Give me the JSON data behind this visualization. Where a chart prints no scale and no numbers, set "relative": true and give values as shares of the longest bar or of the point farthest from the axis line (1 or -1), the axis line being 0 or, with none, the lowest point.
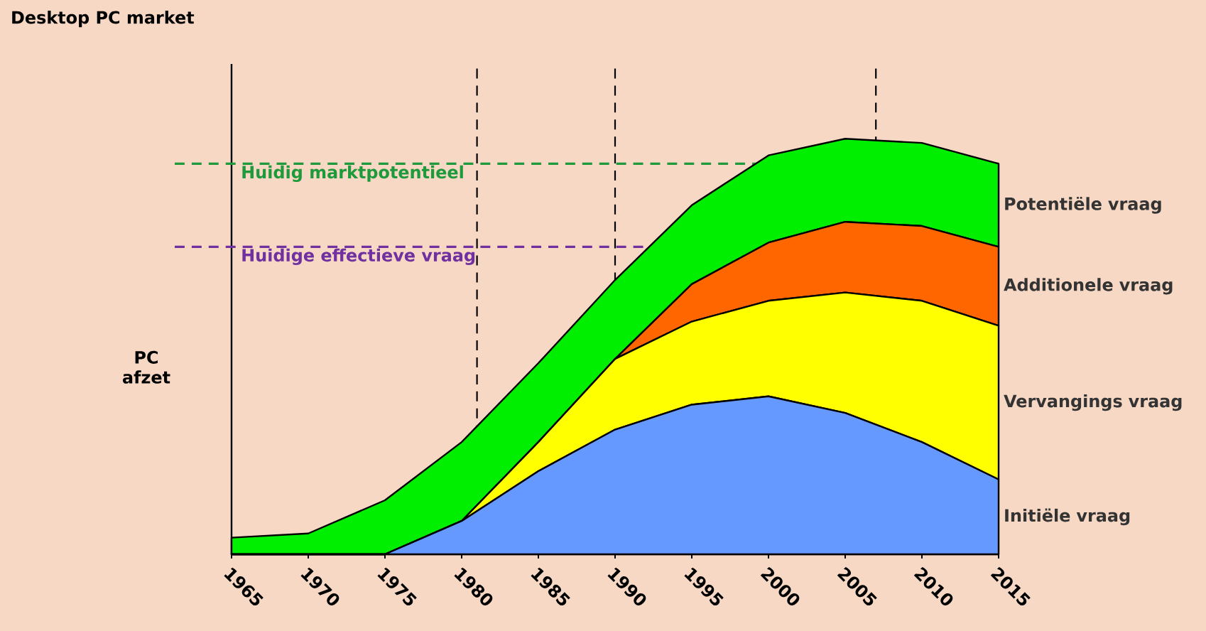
{
  "chart_data": {
    "type": "area",
    "title": "Desktop PC market",
    "annotations": [
      "PC afzet"
    ],
    "x": [
      1965,
      1970,
      1975,
      1980,
      1985,
      1990,
      1995,
      2000,
      2005,
      2010,
      2015
    ],
    "xlim": [
      1965,
      2015
    ],
    "xticks": [
      1965,
      1970,
      1975,
      1980,
      1985,
      1990,
      1995,
      2000,
      2005,
      2010,
      2015
    ],
    "stacked": true,
    "relative": true,
    "grid": false,
    "tick_labels": "x",
    "series": [
      {
        "name": "Initiële vraag",
        "color": "#6699ff",
        "values": [
          0,
          0,
          0,
          0.08,
          0.2,
          0.3,
          0.36,
          0.38,
          0.34,
          0.27,
          0.18
        ]
      },
      {
        "name": "Vervangings vraag",
        "color": "#ffff00",
        "values": [
          0,
          0,
          0,
          0,
          0.07,
          0.17,
          0.2,
          0.23,
          0.29,
          0.34,
          0.37
        ]
      },
      {
        "name": "Additionele vraag",
        "color": "#ff6600",
        "values": [
          0,
          0,
          0,
          0,
          0,
          0,
          0.09,
          0.14,
          0.17,
          0.18,
          0.19
        ]
      },
      {
        "name": "Potentiële vraag",
        "color": "#00ee00",
        "values": [
          0.04,
          0.05,
          0.13,
          0.19,
          0.19,
          0.19,
          0.19,
          0.21,
          0.2,
          0.2,
          0.2
        ]
      }
    ],
    "ref_lines": [
      {
        "axis": "x",
        "value": 1981,
        "color": "#000000",
        "line_style": "dashed"
      },
      {
        "axis": "x",
        "value": 1990,
        "color": "#000000",
        "line_style": "dashed"
      },
      {
        "axis": "x",
        "value": 2007,
        "color": "#000000",
        "line_style": "dashed"
      },
      {
        "axis": "y",
        "value": 0.94,
        "label": "Huidig marktpotentieel",
        "color": "#1e9a3c",
        "line_style": "dashed"
      },
      {
        "axis": "y",
        "value": 0.74,
        "label": "Huidige effectieve vraag",
        "color": "#7030a0",
        "line_style": "dashed"
      }
    ]
  }
}
